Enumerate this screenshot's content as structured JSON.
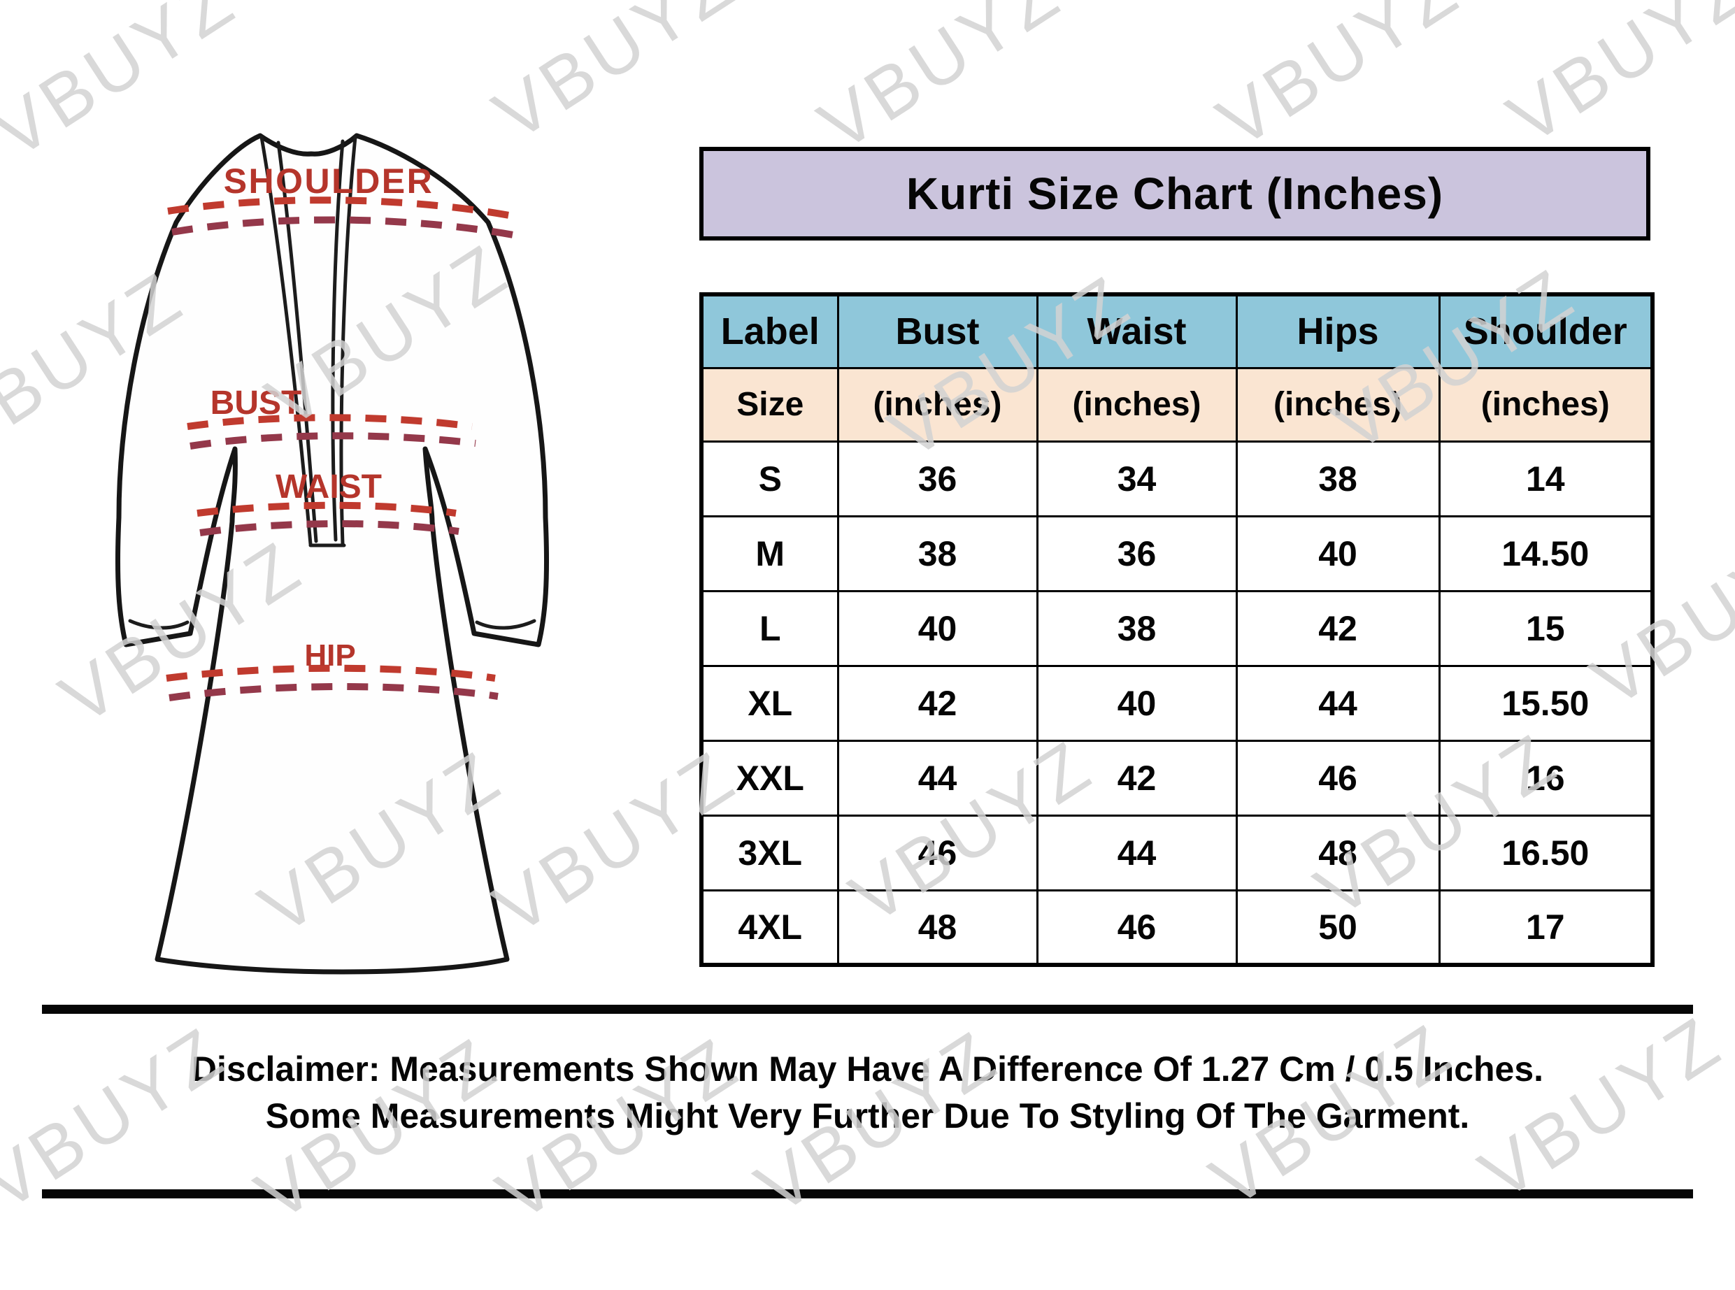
{
  "title": "Kurti Size Chart (Inches)",
  "watermark": {
    "text": "VBUYZ"
  },
  "figure": {
    "labels": {
      "shoulder": "SHOULDER",
      "bust": "BUST",
      "waist": "WAIST",
      "hip": "HIP"
    }
  },
  "table": {
    "columns": [
      {
        "label": "Label",
        "sub": "Size"
      },
      {
        "label": "Bust",
        "sub": "(inches)"
      },
      {
        "label": "Waist",
        "sub": "(inches)"
      },
      {
        "label": "Hips",
        "sub": "(inches)"
      },
      {
        "label": "Shoulder",
        "sub": "(inches)"
      }
    ],
    "rows": [
      {
        "size": "S",
        "bust": "36",
        "waist": "34",
        "hips": "38",
        "shoulder": "14"
      },
      {
        "size": "M",
        "bust": "38",
        "waist": "36",
        "hips": "40",
        "shoulder": "14.50"
      },
      {
        "size": "L",
        "bust": "40",
        "waist": "38",
        "hips": "42",
        "shoulder": "15"
      },
      {
        "size": "XL",
        "bust": "42",
        "waist": "40",
        "hips": "44",
        "shoulder": "15.50"
      },
      {
        "size": "XXL",
        "bust": "44",
        "waist": "42",
        "hips": "46",
        "shoulder": "16"
      },
      {
        "size": "3XL",
        "bust": "46",
        "waist": "44",
        "hips": "48",
        "shoulder": "16.50"
      },
      {
        "size": "4XL",
        "bust": "48",
        "waist": "46",
        "hips": "50",
        "shoulder": "17"
      }
    ]
  },
  "disclaimer": {
    "line1": "Disclaimer: Measurements Shown May Have A Difference Of 1.27 Cm / 0.5 Inches.",
    "line2": "Some Measurements Might Very Further Due To Styling Of The Garment."
  },
  "colors": {
    "title_bg": "#cbc4dd",
    "header_bg": "#8fc7da",
    "subheader_bg": "#fae5d2",
    "figure_red": "#b5352b",
    "dash_red": "#c03a2e",
    "dash_maroon": "#94384a",
    "watermark_gray": "#d3d3d3",
    "border_black": "#000000"
  }
}
